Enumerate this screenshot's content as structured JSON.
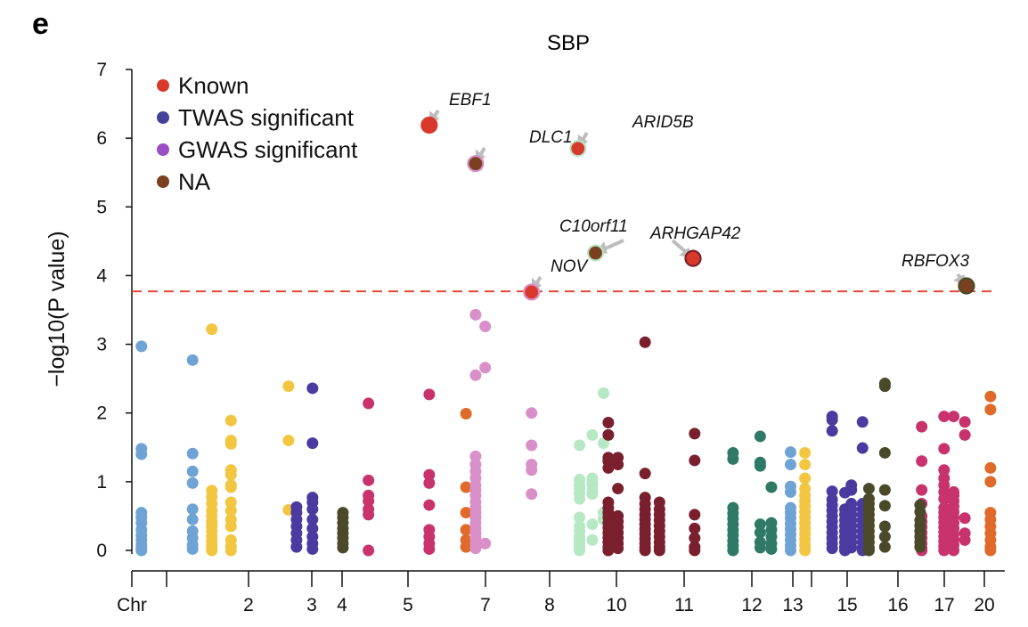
{
  "panel_letter": "e",
  "chart_data": {
    "type": "scatter",
    "title": "SBP",
    "ylabel": "−log10(P value)",
    "ylim": [
      0,
      7
    ],
    "yticks": [
      0,
      1,
      2,
      3,
      4,
      5,
      6,
      7
    ],
    "xtick_labels": [
      "Chr",
      "2",
      "3",
      "4",
      "5",
      "7",
      "8",
      "10",
      "11",
      "12",
      "13",
      "15",
      "16",
      "17",
      "20"
    ],
    "threshold": 3.77,
    "grid": false,
    "legend_placement": "top-left",
    "legend": [
      {
        "label": "Known",
        "color": "#d9392b"
      },
      {
        "label": "TWAS significant",
        "color": "#45409a"
      },
      {
        "label": "GWAS significant",
        "color": "#9a4fc5"
      },
      {
        "label": "NA",
        "color": "#7a4020"
      }
    ],
    "groups": [
      {
        "color": "#6fa3d6",
        "x": 0.3,
        "y": [
          2.97,
          1.48,
          1.4,
          0.55,
          0.48,
          0.4,
          0.3,
          0.22,
          0.15,
          0.08,
          0.03,
          0.0
        ]
      },
      {
        "color": "#6fa3d6",
        "x": 1.9,
        "y": [
          2.77,
          1.41,
          1.15,
          0.98,
          0.6,
          0.45,
          0.28,
          0.18,
          0.08,
          0.02
        ]
      },
      {
        "color": "#f2c641",
        "x": 2.5,
        "y": [
          3.22,
          0.87,
          0.78,
          0.68,
          0.58,
          0.5,
          0.42,
          0.35,
          0.28,
          0.2,
          0.13,
          0.06,
          0.0
        ]
      },
      {
        "color": "#f2c641",
        "x": 3.1,
        "y": [
          1.89,
          1.6,
          1.55,
          1.17,
          1.1,
          0.95,
          0.92,
          0.7,
          0.58,
          0.45,
          0.35,
          0.15,
          0.06,
          0.0
        ]
      },
      {
        "color": "#f2c641",
        "x": 4.9,
        "y": [
          2.39,
          1.6,
          0.59
        ]
      },
      {
        "color": "#4b3aa0",
        "x": 5.15,
        "y": [
          0.63,
          0.55,
          0.45,
          0.35,
          0.25,
          0.15,
          0.05
        ]
      },
      {
        "color": "#4b3aa0",
        "x": 5.65,
        "y": [
          2.36,
          1.56,
          0.77,
          0.7,
          0.6,
          0.45,
          0.32,
          0.2,
          0.1,
          0.02
        ]
      },
      {
        "color": "#4a4a2a",
        "x": 6.6,
        "y": [
          0.55,
          0.48,
          0.4,
          0.32,
          0.25,
          0.18,
          0.1,
          0.04
        ]
      },
      {
        "color": "#c8336e",
        "x": 7.4,
        "y": [
          2.14,
          1.02,
          0.8,
          0.72,
          0.6,
          0.52,
          0.0
        ]
      },
      {
        "color": "#c8336e",
        "x": 9.3,
        "y": [
          2.27,
          1.1,
          0.98,
          0.66,
          0.3,
          0.2,
          0.1,
          0.02
        ]
      },
      {
        "color": "#e06a2a",
        "x": 10.45,
        "y": [
          1.99,
          0.92,
          0.55,
          0.3,
          0.15,
          0.05
        ]
      },
      {
        "color": "#d98fc7",
        "x": 10.75,
        "y": [
          3.43,
          2.55,
          1.37,
          1.25,
          1.15,
          1.05,
          0.95,
          0.88,
          0.8,
          0.7,
          0.62,
          0.55,
          0.48,
          0.4,
          0.32,
          0.25,
          0.18,
          0.1,
          0.03
        ]
      },
      {
        "color": "#d98fc7",
        "x": 11.05,
        "y": [
          3.26,
          2.66,
          0.1
        ]
      },
      {
        "color": "#d98fc7",
        "x": 12.5,
        "y": [
          2.0,
          1.53,
          1.25,
          1.17,
          0.82
        ]
      },
      {
        "color": "#b6e8c4",
        "x": 14.0,
        "y": [
          1.53,
          1.03,
          0.95,
          0.9,
          0.83,
          0.75,
          0.48,
          0.35,
          0.28,
          0.2,
          0.15,
          0.1,
          0.05,
          0.0
        ]
      },
      {
        "color": "#b6e8c4",
        "x": 14.4,
        "y": [
          1.68,
          1.05,
          1.0,
          0.95,
          0.87,
          0.82,
          0.38,
          0.15
        ]
      },
      {
        "color": "#b6e8c4",
        "x": 14.75,
        "y": [
          2.29,
          1.56,
          0.55,
          0.45
        ]
      },
      {
        "color": "#7a1f2e",
        "x": 14.9,
        "y": [
          1.86,
          1.68,
          1.35,
          1.3,
          1.2,
          0.7,
          0.62,
          0.55,
          0.48,
          0.4,
          0.33,
          0.26,
          0.19,
          0.12,
          0.05,
          0.0
        ]
      },
      {
        "color": "#7a1f2e",
        "x": 15.2,
        "y": [
          1.35,
          1.25,
          0.9,
          0.5,
          0.42,
          0.34,
          0.26,
          0.18,
          0.1,
          0.03
        ]
      },
      {
        "color": "#7a1f2e",
        "x": 16.05,
        "y": [
          3.03,
          1.12,
          0.77,
          0.68,
          0.6,
          0.52,
          0.45,
          0.38,
          0.31,
          0.24,
          0.17,
          0.1,
          0.04,
          0.0
        ]
      },
      {
        "color": "#7a1f2e",
        "x": 16.5,
        "y": [
          0.7,
          0.6,
          0.52,
          0.44,
          0.36,
          0.28,
          0.2,
          0.12,
          0.05,
          0.0
        ]
      },
      {
        "color": "#7a1f2e",
        "x": 17.6,
        "y": [
          1.7,
          1.31,
          0.52,
          0.32,
          0.18,
          0.05,
          0.0
        ]
      },
      {
        "color": "#2f7a66",
        "x": 18.8,
        "y": [
          1.42,
          1.33,
          0.62,
          0.54,
          0.46,
          0.38,
          0.3,
          0.22,
          0.14,
          0.07,
          0.0
        ]
      },
      {
        "color": "#2f7a66",
        "x": 19.65,
        "y": [
          1.66,
          1.28,
          1.23,
          0.38,
          0.26,
          0.12,
          0.04
        ]
      },
      {
        "color": "#2f7a66",
        "x": 20.0,
        "y": [
          0.92,
          0.4,
          0.3,
          0.2,
          0.1,
          0.02
        ]
      },
      {
        "color": "#6fa3d6",
        "x": 20.6,
        "y": [
          1.43,
          1.25,
          0.93,
          0.85,
          0.62,
          0.55,
          0.47,
          0.39,
          0.31,
          0.23,
          0.15,
          0.07,
          0.0
        ]
      },
      {
        "color": "#f2c641",
        "x": 21.05,
        "y": [
          1.42,
          1.25,
          1.05,
          0.9,
          0.8,
          0.72,
          0.64,
          0.56,
          0.48,
          0.4,
          0.32,
          0.24,
          0.16,
          0.08,
          0.0
        ]
      },
      {
        "color": "#4b3aa0",
        "x": 21.9,
        "y": [
          1.95,
          1.9,
          1.74,
          0.86,
          0.74,
          0.66,
          0.58,
          0.5,
          0.42,
          0.34,
          0.26,
          0.18,
          0.1,
          0.03
        ]
      },
      {
        "color": "#4b3aa0",
        "x": 22.3,
        "y": [
          0.84,
          0.6,
          0.52,
          0.44,
          0.36,
          0.28,
          0.2,
          0.12,
          0.05,
          0.0
        ]
      },
      {
        "color": "#4b3aa0",
        "x": 22.5,
        "y": [
          0.95,
          0.88,
          0.68,
          0.6,
          0.52,
          0.44,
          0.36,
          0.28,
          0.2,
          0.12,
          0.04
        ]
      },
      {
        "color": "#4b3aa0",
        "x": 22.85,
        "y": [
          1.87,
          1.49,
          0.68,
          0.6,
          0.52,
          0.44,
          0.36,
          0.28,
          0.2,
          0.12,
          0.04,
          0.0
        ]
      },
      {
        "color": "#4a4a2a",
        "x": 23.05,
        "y": [
          0.9,
          0.75,
          0.68,
          0.6,
          0.52,
          0.44,
          0.36,
          0.28,
          0.2,
          0.12,
          0.04,
          0.0
        ]
      },
      {
        "color": "#4a4a2a",
        "x": 23.55,
        "y": [
          2.43,
          2.39,
          1.42,
          0.88,
          0.65,
          0.35,
          0.2,
          0.05
        ]
      },
      {
        "color": "#c8336e",
        "x": 24.7,
        "y": [
          1.8,
          1.3,
          0.88,
          0.68,
          0.5,
          0.42,
          0.34,
          0.26,
          0.18,
          0.1,
          0.03,
          0.0
        ]
      },
      {
        "color": "#4a4a2a",
        "x": 24.65,
        "y": [
          0.66,
          0.56,
          0.44,
          0.36,
          0.28,
          0.2,
          0.12,
          0.05
        ]
      },
      {
        "color": "#c8336e",
        "x": 25.4,
        "y": [
          1.95,
          1.48,
          1.17,
          1.05,
          0.95,
          0.85,
          0.75,
          0.62,
          0.55,
          0.48,
          0.41,
          0.34,
          0.27,
          0.2,
          0.13,
          0.06,
          0.0
        ]
      },
      {
        "color": "#c8336e",
        "x": 25.7,
        "y": [
          1.95,
          0.85,
          0.8,
          0.72,
          0.64,
          0.56,
          0.48,
          0.4,
          0.32,
          0.24,
          0.16,
          0.08,
          0.0
        ]
      },
      {
        "color": "#c8336e",
        "x": 26.05,
        "y": [
          1.87,
          1.68,
          0.47,
          0.25,
          0.15
        ]
      },
      {
        "color": "#e06a2a",
        "x": 26.85,
        "y": [
          2.24,
          2.05,
          1.2,
          1.0,
          0.55,
          0.45,
          0.35,
          0.25,
          0.15,
          0.05,
          0.0
        ]
      }
    ],
    "annotated": [
      {
        "gene": "EBF1",
        "x": 9.3,
        "y": 6.19,
        "fill": "#d9392b",
        "edge": "#d9392b"
      },
      {
        "gene": "DLC1",
        "x": 10.75,
        "y": 5.63,
        "fill": "#7a4020",
        "edge": "#d98fc7"
      },
      {
        "gene": "ARID5B",
        "x": 13.95,
        "y": 5.85,
        "fill": "#d9392b",
        "edge": "#b6e8c4"
      },
      {
        "gene": "C10orf11",
        "x": 14.5,
        "y": 4.33,
        "fill": "#7a4020",
        "edge": "#b6e8c4"
      },
      {
        "gene": "ARHGAP42",
        "x": 17.55,
        "y": 4.25,
        "fill": "#d9392b",
        "edge": "#7a1f2e"
      },
      {
        "gene": "NOV",
        "x": 12.5,
        "y": 3.76,
        "fill": "#d9392b",
        "edge": "#d98fc7"
      },
      {
        "gene": "RBFOX3",
        "x": 26.1,
        "y": 3.85,
        "fill": "#7a4020",
        "edge": "#4a4a2a"
      }
    ]
  }
}
